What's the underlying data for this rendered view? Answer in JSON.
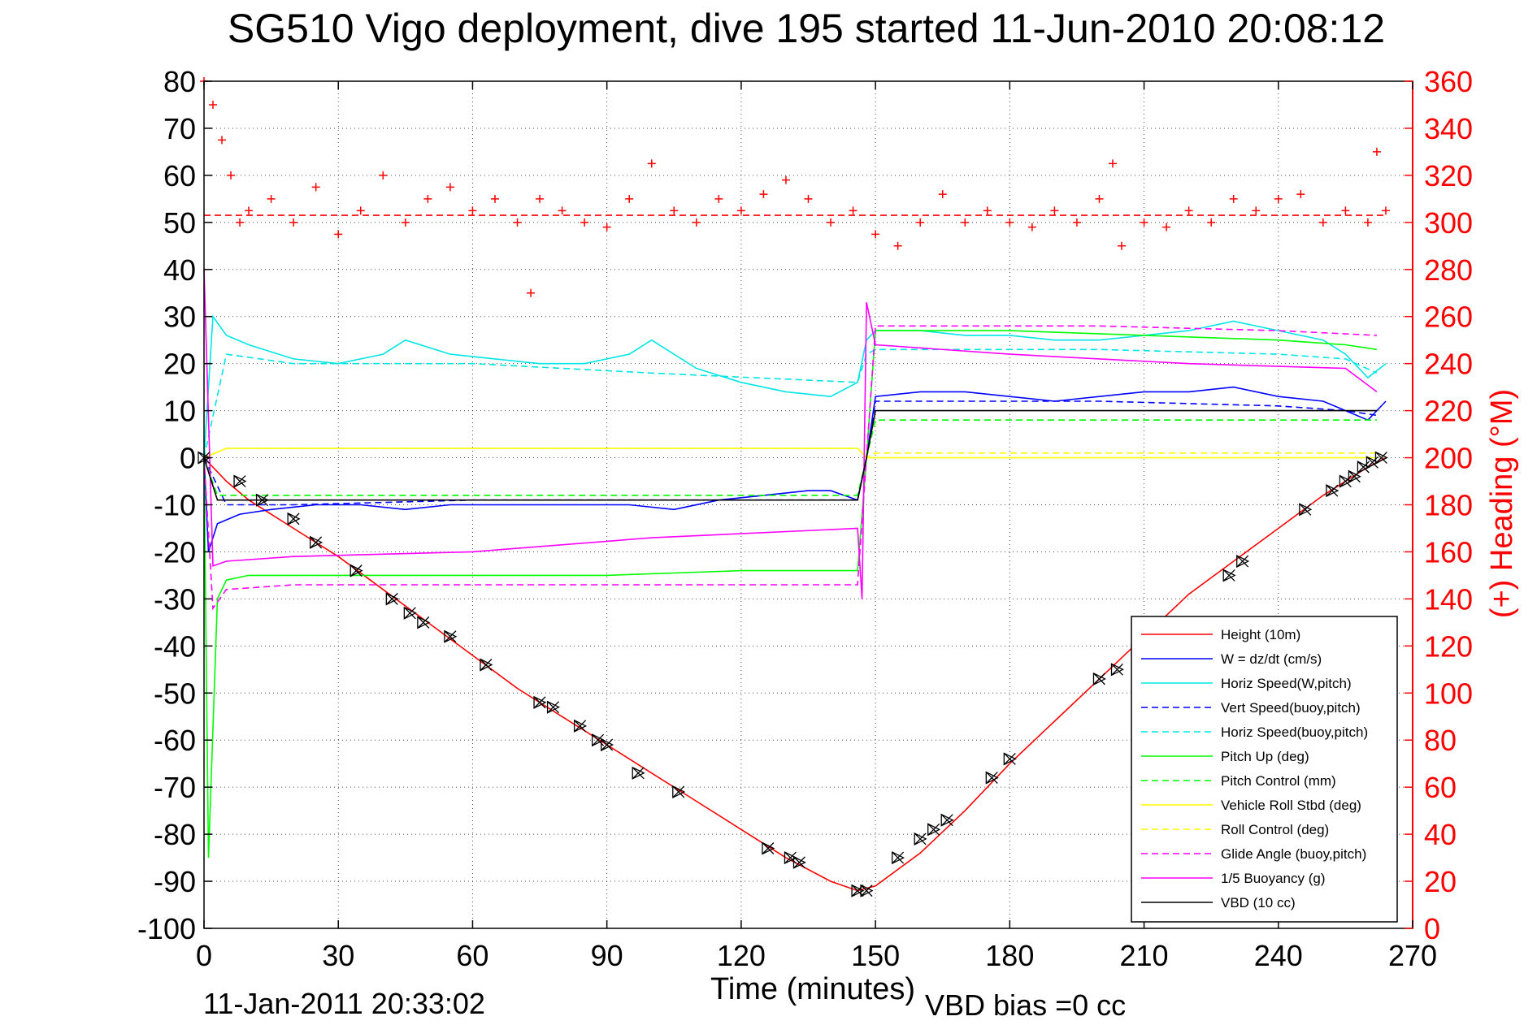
{
  "chart_data": {
    "type": "line",
    "title": "SG510 Vigo deployment, dive 195 started 11-Jun-2010 20:08:12",
    "xlabel": "Time (minutes)",
    "ylabel_right": "(+) Heading (°M)",
    "footer_timestamp": "11-Jan-2011 20:33:02",
    "footer_bias": "VBD bias =0 cc",
    "xlim": [
      0,
      270
    ],
    "ylim": [
      -100,
      80
    ],
    "y2lim": [
      0,
      360
    ],
    "grid": true,
    "legend_position": "bottom-right",
    "x_ticks": [
      "0",
      "30",
      "60",
      "90",
      "120",
      "150",
      "180",
      "210",
      "240",
      "270"
    ],
    "y_ticks": [
      "80",
      "70",
      "60",
      "50",
      "40",
      "30",
      "20",
      "10",
      "0",
      "-10",
      "-20",
      "-30",
      "-40",
      "-50",
      "-60",
      "-70",
      "-80",
      "-90",
      "-100"
    ],
    "y2_ticks": [
      "360",
      "340",
      "320",
      "300",
      "280",
      "260",
      "240",
      "220",
      "200",
      "180",
      "160",
      "140",
      "120",
      "100",
      "80",
      "60",
      "40",
      "20",
      "0"
    ],
    "heading_mean": 303,
    "series": [
      {
        "name": "Height (10m)",
        "color": "#ff0000",
        "style": "solid",
        "x": [
          0,
          5,
          10,
          20,
          30,
          40,
          50,
          60,
          70,
          80,
          90,
          100,
          110,
          120,
          130,
          140,
          146,
          150,
          160,
          170,
          180,
          190,
          200,
          210,
          220,
          230,
          240,
          250,
          255,
          260,
          264
        ],
        "y": [
          0,
          -5,
          -9,
          -15,
          -21,
          -28,
          -35,
          -42,
          -49,
          -55,
          -61,
          -67,
          -73,
          -79,
          -85,
          -90,
          -92,
          -91,
          -84,
          -75,
          -65,
          -56,
          -47,
          -38,
          -29,
          -22,
          -15,
          -8,
          -5,
          -2,
          0
        ]
      },
      {
        "name": "W = dz/dt (cm/s)",
        "color": "#0000ff",
        "style": "solid",
        "x": [
          0,
          1,
          3,
          8,
          15,
          25,
          35,
          45,
          55,
          65,
          75,
          85,
          95,
          105,
          115,
          125,
          135,
          140,
          146,
          148,
          150,
          160,
          170,
          180,
          190,
          200,
          210,
          220,
          230,
          240,
          250,
          255,
          260,
          264
        ],
        "y": [
          0,
          -20,
          -14,
          -12,
          -11,
          -10,
          -10,
          -11,
          -10,
          -10,
          -10,
          -10,
          -10,
          -11,
          -9,
          -8,
          -7,
          -7,
          -9,
          0,
          13,
          14,
          14,
          13,
          12,
          13,
          14,
          14,
          15,
          13,
          12,
          10,
          8,
          12
        ]
      },
      {
        "name": "Horiz Speed(W,pitch)",
        "color": "#00e5e5",
        "style": "solid",
        "x": [
          0,
          2,
          5,
          10,
          20,
          30,
          40,
          45,
          55,
          65,
          75,
          85,
          95,
          100,
          110,
          120,
          130,
          140,
          146,
          148,
          150,
          160,
          170,
          180,
          190,
          200,
          210,
          220,
          230,
          240,
          250,
          255,
          260,
          264
        ],
        "y": [
          0,
          30,
          26,
          24,
          21,
          20,
          22,
          25,
          22,
          21,
          20,
          20,
          22,
          25,
          19,
          16,
          14,
          13,
          16,
          25,
          27,
          27,
          26,
          26,
          25,
          25,
          26,
          27,
          29,
          27,
          25,
          22,
          17,
          20
        ]
      },
      {
        "name": "Vert Speed(buoy,pitch)",
        "color": "#0000ff",
        "style": "dashed",
        "x": [
          0,
          5,
          20,
          60,
          100,
          146,
          148,
          150,
          200,
          240,
          255,
          262
        ],
        "y": [
          0,
          -10,
          -10,
          -9,
          -9,
          -9,
          0,
          12,
          12,
          11,
          10,
          9
        ]
      },
      {
        "name": "Horiz Speed(buoy,pitch)",
        "color": "#00e5e5",
        "style": "dashed",
        "x": [
          0,
          5,
          20,
          60,
          100,
          146,
          148,
          150,
          200,
          240,
          255,
          262
        ],
        "y": [
          0,
          22,
          20,
          20,
          18,
          16,
          22,
          23,
          23,
          22,
          21,
          18
        ]
      },
      {
        "name": "Pitch Up (deg)",
        "color": "#00ff00",
        "style": "solid",
        "x": [
          0,
          1,
          3,
          5,
          10,
          30,
          60,
          90,
          120,
          146,
          148,
          150,
          180,
          210,
          240,
          255,
          262
        ],
        "y": [
          0,
          -85,
          -30,
          -26,
          -25,
          -25,
          -25,
          -25,
          -24,
          -24,
          0,
          27,
          27,
          26,
          25,
          24,
          23
        ]
      },
      {
        "name": "Pitch Control (mm)",
        "color": "#00ff00",
        "style": "dashed",
        "x": [
          0,
          3,
          146,
          148,
          150,
          262
        ],
        "y": [
          0,
          -8,
          -8,
          0,
          8,
          8
        ]
      },
      {
        "name": "Vehicle Roll Stbd (deg)",
        "color": "#ffff00",
        "style": "solid",
        "x": [
          0,
          5,
          146,
          148,
          150,
          262
        ],
        "y": [
          0,
          2,
          2,
          0,
          0,
          0
        ]
      },
      {
        "name": "Roll Control (deg)",
        "color": "#ffff00",
        "style": "dashed",
        "x": [
          0,
          5,
          146,
          148,
          150,
          262
        ],
        "y": [
          0,
          2,
          2,
          0,
          1,
          1
        ]
      },
      {
        "name": "Glide Angle (buoy,pitch)",
        "color": "#ff00ff",
        "style": "dashed",
        "x": [
          0,
          2,
          5,
          20,
          60,
          100,
          146,
          148,
          150,
          200,
          240,
          262
        ],
        "y": [
          0,
          -32,
          -28,
          -27,
          -27,
          -27,
          -27,
          0,
          28,
          28,
          27,
          26
        ]
      },
      {
        "name": "1/5 Buoyancy (g)",
        "color": "#ff00ff",
        "style": "solid",
        "x": [
          0,
          2,
          5,
          20,
          60,
          100,
          146,
          147,
          148,
          150,
          180,
          220,
          255,
          262
        ],
        "y": [
          40,
          -23,
          -22,
          -21,
          -20,
          -17,
          -15,
          -30,
          33,
          24,
          22,
          20,
          19,
          14
        ]
      },
      {
        "name": "VBD (10 cc)",
        "color": "#000000",
        "style": "solid",
        "x": [
          0,
          3,
          146,
          148,
          150,
          262
        ],
        "y": [
          0,
          -9,
          -9,
          0,
          10,
          10
        ]
      },
      {
        "name": "Heading",
        "color": "#ff0000",
        "style": "plus",
        "axis": "right",
        "x": [
          0,
          2,
          4,
          6,
          8,
          10,
          15,
          20,
          25,
          30,
          35,
          40,
          45,
          50,
          55,
          60,
          65,
          70,
          73,
          75,
          80,
          85,
          90,
          95,
          100,
          105,
          110,
          115,
          120,
          125,
          130,
          135,
          140,
          145,
          150,
          155,
          160,
          165,
          170,
          175,
          180,
          185,
          190,
          195,
          200,
          203,
          205,
          210,
          215,
          220,
          225,
          230,
          235,
          240,
          245,
          250,
          255,
          260,
          262,
          264
        ],
        "y": [
          360,
          350,
          335,
          320,
          300,
          305,
          310,
          300,
          315,
          295,
          305,
          320,
          300,
          310,
          315,
          305,
          310,
          300,
          270,
          310,
          305,
          300,
          298,
          310,
          325,
          305,
          300,
          310,
          305,
          312,
          318,
          310,
          300,
          305,
          295,
          290,
          300,
          312,
          300,
          305,
          300,
          298,
          305,
          300,
          310,
          325,
          290,
          300,
          298,
          305,
          300,
          310,
          305,
          310,
          312,
          300,
          305,
          300,
          330,
          305
        ]
      },
      {
        "name": "Heading mean",
        "color": "#ff0000",
        "style": "dashed",
        "axis": "right",
        "x": [
          0,
          264
        ],
        "y": [
          303,
          303
        ]
      }
    ],
    "markers": {
      "name": "Sample markers",
      "color": "#000000",
      "x": [
        0,
        8,
        13,
        20,
        25,
        34,
        42,
        46,
        49,
        55,
        63,
        75,
        78,
        84,
        88,
        90,
        97,
        106,
        126,
        131,
        133,
        146,
        148,
        155,
        160,
        163,
        166,
        176,
        180,
        200,
        204,
        229,
        232,
        246,
        252,
        255,
        257,
        259,
        261,
        263
      ],
      "y": [
        0,
        -5,
        -9,
        -13,
        -18,
        -24,
        -30,
        -33,
        -35,
        -38,
        -44,
        -52,
        -53,
        -57,
        -60,
        -61,
        -67,
        -71,
        -83,
        -85,
        -86,
        -92,
        -92,
        -85,
        -81,
        -79,
        -77,
        -68,
        -64,
        -47,
        -45,
        -25,
        -22,
        -11,
        -7,
        -5,
        -4,
        -2,
        -1,
        0
      ]
    }
  }
}
